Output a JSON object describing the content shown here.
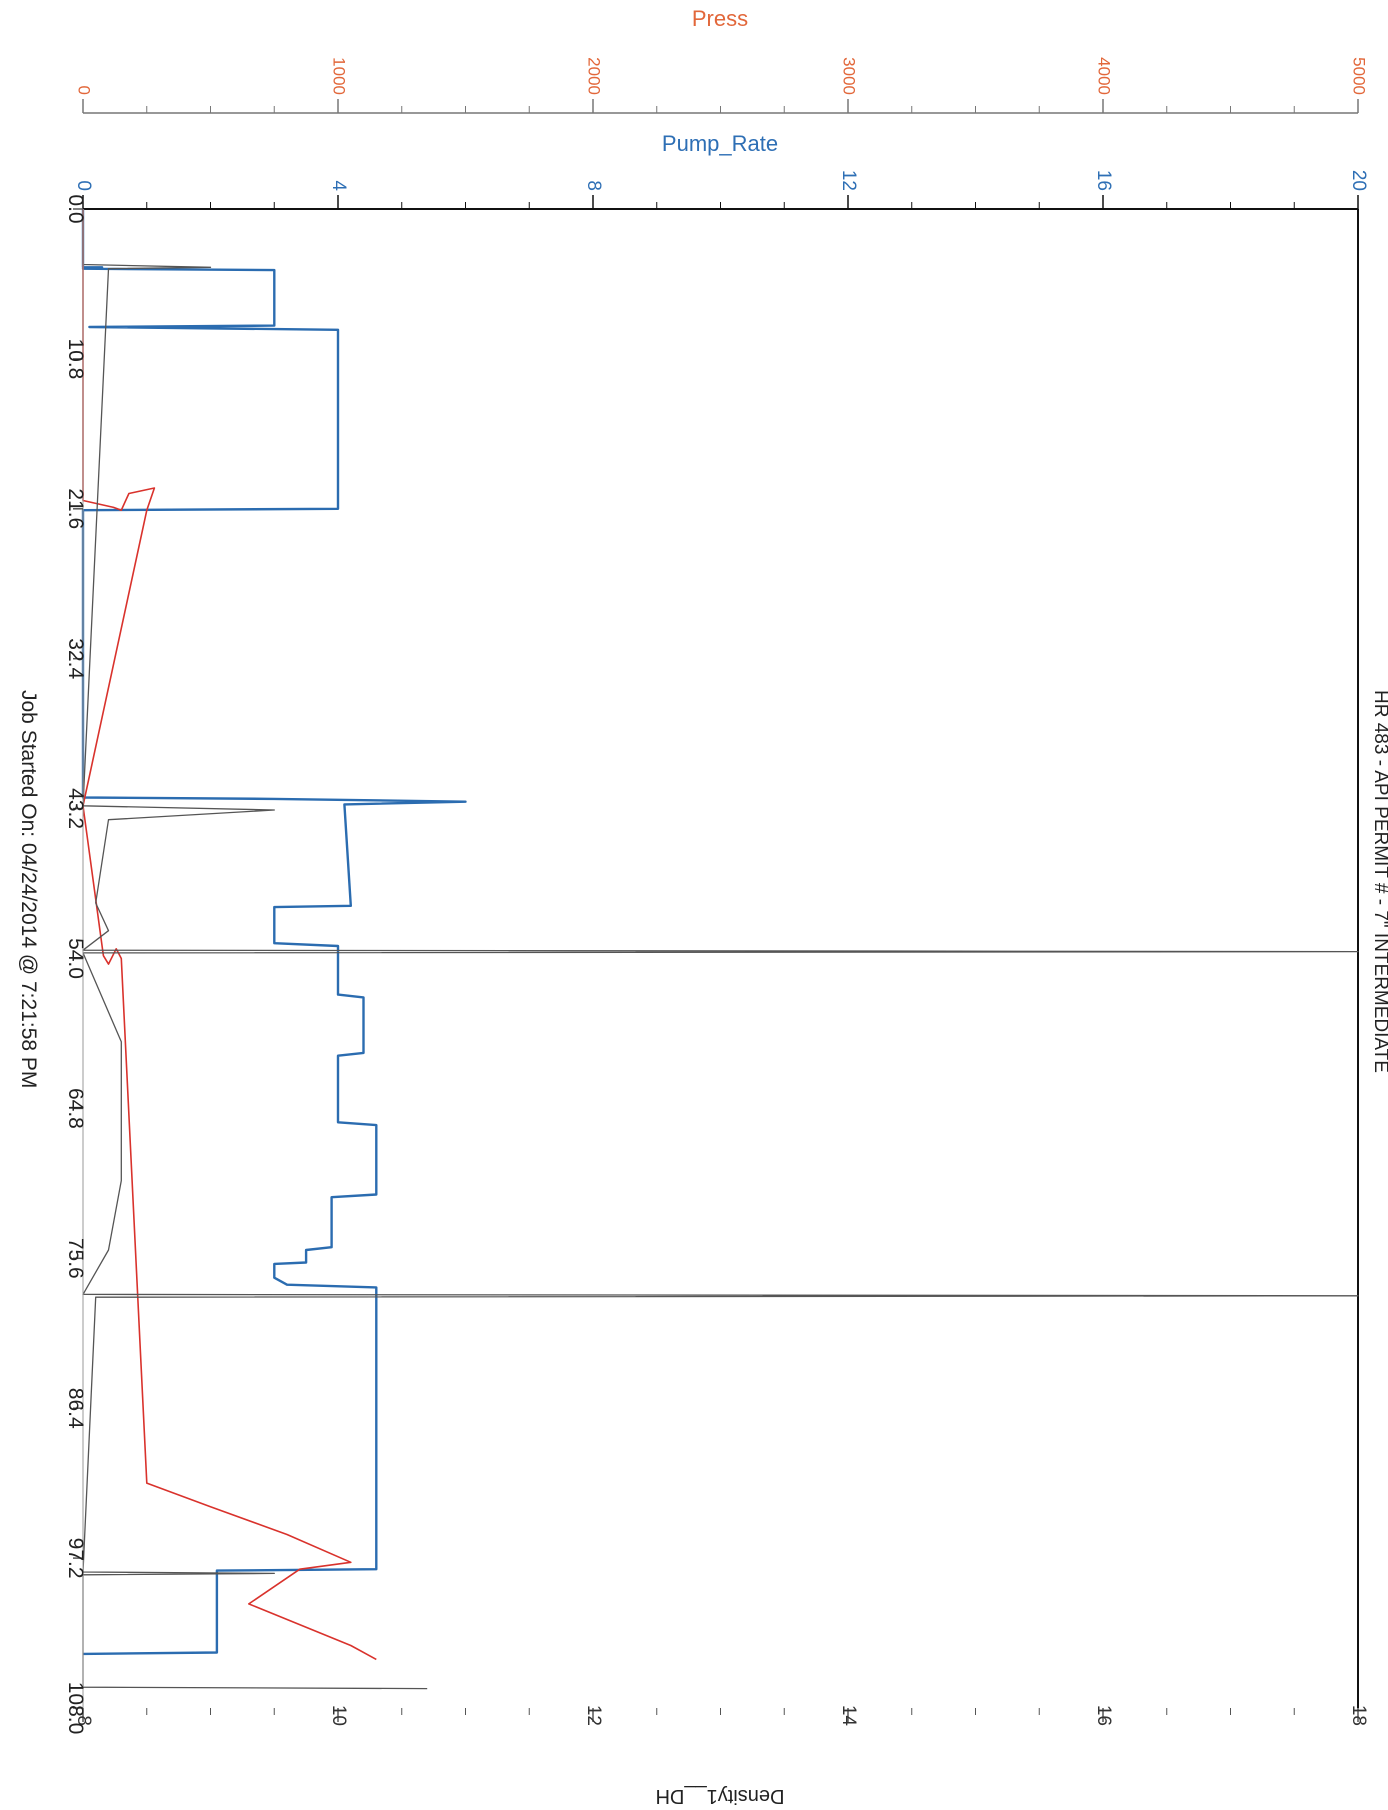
{
  "chart_data": {
    "type": "line",
    "title": "HR 483 - API PERMIT # - 7\" INTERMEDIATE",
    "footer": "Job Started On: 04/24/2014 @ 7:21:58 PM",
    "orientation": "rotated: time axis runs top-to-bottom, value axes run left-to-right",
    "time_axis": {
      "ticks": [
        "0.0",
        "10.8",
        "21.6",
        "32.4",
        "43.2",
        "54.0",
        "64.8",
        "75.6",
        "86.4",
        "97.2",
        "108.0"
      ],
      "range": [
        0,
        108
      ]
    },
    "axes": {
      "press": {
        "label": "Press",
        "ticks": [
          "0",
          "1000",
          "2000",
          "3000",
          "4000",
          "5000"
        ],
        "range": [
          0,
          5000
        ],
        "color": "#e2673a"
      },
      "pump_rate": {
        "label": "Pump_Rate",
        "ticks": [
          "0",
          "4",
          "8",
          "12",
          "16",
          "20"
        ],
        "range": [
          0,
          20
        ],
        "color": "#2e6fb5"
      },
      "density": {
        "label": "Density1__DH",
        "ticks": [
          "8",
          "10",
          "12",
          "14",
          "16",
          "18"
        ],
        "range": [
          8,
          18
        ],
        "color": "#333333"
      }
    },
    "series": [
      {
        "name": "Pump_Rate",
        "color": "#2b6cb0",
        "points": [
          [
            0.0,
            0
          ],
          [
            4.2,
            0
          ],
          [
            4.2,
            0.3
          ],
          [
            4.3,
            0
          ],
          [
            4.4,
            3
          ],
          [
            8.4,
            3
          ],
          [
            8.5,
            0.1
          ],
          [
            8.7,
            4
          ],
          [
            21.6,
            4
          ],
          [
            21.7,
            0
          ],
          [
            42.4,
            0
          ],
          [
            42.5,
            3
          ],
          [
            42.7,
            6
          ],
          [
            42.9,
            4.1
          ],
          [
            50.2,
            4.2
          ],
          [
            50.3,
            3
          ],
          [
            52.9,
            3
          ],
          [
            53.1,
            4
          ],
          [
            56.6,
            4
          ],
          [
            56.8,
            4.4
          ],
          [
            60.8,
            4.4
          ],
          [
            61.0,
            4
          ],
          [
            65.8,
            4
          ],
          [
            66.0,
            4.6
          ],
          [
            71.0,
            4.6
          ],
          [
            71.2,
            3.9
          ],
          [
            74.8,
            3.9
          ],
          [
            75.0,
            3.5
          ],
          [
            75.9,
            3.5
          ],
          [
            76.0,
            3
          ],
          [
            77.0,
            3
          ],
          [
            77.5,
            3.2
          ],
          [
            77.7,
            4.6
          ],
          [
            98.0,
            4.6
          ],
          [
            98.1,
            2.1
          ],
          [
            104.0,
            2.1
          ],
          [
            104.1,
            0
          ]
        ]
      },
      {
        "name": "Press",
        "color": "#d9322c",
        "points": [
          [
            0.0,
            0
          ],
          [
            21.0,
            0
          ],
          [
            21.5,
            120
          ],
          [
            21.7,
            150
          ],
          [
            20.5,
            180
          ],
          [
            20.1,
            280
          ],
          [
            21.7,
            250
          ],
          [
            43.0,
            0
          ],
          [
            53.8,
            80
          ],
          [
            54.4,
            100
          ],
          [
            53.3,
            130
          ],
          [
            54.0,
            150
          ],
          [
            91.8,
            250
          ],
          [
            93.5,
            500
          ],
          [
            95.5,
            800
          ],
          [
            97.5,
            1050
          ],
          [
            98.0,
            850
          ],
          [
            100.5,
            650
          ],
          [
            103.5,
            1050
          ],
          [
            104.5,
            1150
          ]
        ]
      },
      {
        "name": "Density1__DH",
        "color": "#555555",
        "points": [
          [
            0.0,
            8
          ],
          [
            4.0,
            8
          ],
          [
            4.2,
            9
          ],
          [
            4.3,
            8.2
          ],
          [
            43.0,
            8
          ],
          [
            43.3,
            9.5
          ],
          [
            44.0,
            8.2
          ],
          [
            50.0,
            8.1
          ],
          [
            52.0,
            8.2
          ],
          [
            53.4,
            8
          ],
          [
            53.5,
            18
          ],
          [
            53.6,
            8
          ],
          [
            60.0,
            8.3
          ],
          [
            70.0,
            8.3
          ],
          [
            75.0,
            8.2
          ],
          [
            78.2,
            8
          ],
          [
            78.3,
            18
          ],
          [
            78.4,
            8.1
          ],
          [
            98.2,
            8
          ],
          [
            98.3,
            9.5
          ],
          [
            98.4,
            8
          ],
          [
            106.5,
            8
          ],
          [
            106.6,
            10.7
          ]
        ]
      }
    ]
  }
}
